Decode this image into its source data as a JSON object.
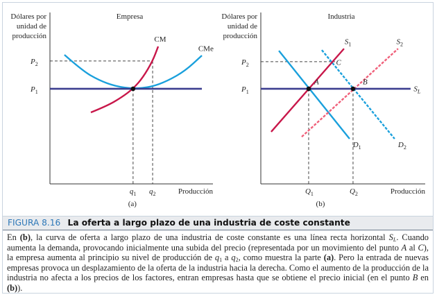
{
  "chart_data": [
    {
      "type": "line",
      "panel_label": "(a)",
      "title": "Empresa",
      "ylabel": "Dólares por unidad de producción",
      "xlabel": "Producción",
      "xlim": [
        0,
        100
      ],
      "ylim": [
        0,
        100
      ],
      "grid": false,
      "y_ticks": [
        {
          "label": "P",
          "sub": "2",
          "value": 71.7
        },
        {
          "label": "P",
          "sub": "1",
          "value": 55.5
        }
      ],
      "x_ticks": [
        {
          "label": "q",
          "sub": "1",
          "value": 51
        },
        {
          "label": "q",
          "sub": "2",
          "value": 63
        }
      ],
      "series": [
        {
          "name": "CMe",
          "color": "#1aa0dc",
          "style": "solid",
          "points": [
            [
              8.9,
              75.3
            ],
            [
              20,
              66
            ],
            [
              30,
              60.5
            ],
            [
              40,
              57
            ],
            [
              51,
              55.5
            ],
            [
              62,
              56.5
            ],
            [
              72,
              60
            ],
            [
              83,
              66
            ],
            [
              93.2,
              74.9
            ]
          ]
        },
        {
          "name": "CM",
          "color": "#c8174a",
          "style": "solid",
          "points": [
            [
              25.1,
              41.7
            ],
            [
              35,
              45.5
            ],
            [
              44,
              50.5
            ],
            [
              51,
              55.5
            ],
            [
              57,
              62
            ],
            [
              63,
              71.7
            ],
            [
              66.4,
              80.2
            ]
          ]
        },
        {
          "name": "P1",
          "color": "#3b3d8f",
          "style": "solid",
          "points": [
            [
              0,
              55.5
            ],
            [
              93.2,
              55.5
            ]
          ]
        }
      ],
      "guides": [
        [
          [
            0,
            71.7
          ],
          [
            63,
            71.7
          ]
        ],
        [
          [
            63,
            71.7
          ],
          [
            63,
            0
          ]
        ],
        [
          [
            51,
            55.5
          ],
          [
            51,
            0
          ]
        ]
      ],
      "points": [
        {
          "name": "",
          "x": 51,
          "y": 55.5
        }
      ],
      "labels": [
        {
          "text": "CM",
          "x": 64,
          "y": 83
        },
        {
          "text": "CMe",
          "x": 91,
          "y": 77.5
        }
      ]
    },
    {
      "type": "line",
      "panel_label": "(b)",
      "title": "Industria",
      "ylabel": "Dólares por unidad de producción",
      "xlabel": "Producción",
      "xlim": [
        0,
        100
      ],
      "ylim": [
        0,
        100
      ],
      "grid": false,
      "y_ticks": [
        {
          "label": "P",
          "sub": "2",
          "value": 71.3
        },
        {
          "label": "P",
          "sub": "1",
          "value": 55.5
        }
      ],
      "x_ticks": [
        {
          "label": "Q",
          "sub": "1",
          "value": 29.1
        },
        {
          "label": "Q",
          "sub": "2",
          "value": 56.1
        }
      ],
      "series": [
        {
          "name": "D1",
          "color": "#1aa0dc",
          "style": "solid",
          "points": [
            [
              11,
              77.7
            ],
            [
              54,
              26.3
            ]
          ]
        },
        {
          "name": "D2",
          "color": "#1aa0dc",
          "style": "dashed",
          "points": [
            [
              37.1,
              78.1
            ],
            [
              81.4,
              26.3
            ]
          ]
        },
        {
          "name": "S1",
          "color": "#c8174a",
          "style": "solid",
          "points": [
            [
              6.3,
              30.4
            ],
            [
              50.6,
              78.9
            ]
          ]
        },
        {
          "name": "S2",
          "color": "#f0607a",
          "style": "dashed",
          "points": [
            [
              24.9,
              27.5
            ],
            [
              83.5,
              78.9
            ]
          ]
        },
        {
          "name": "SL",
          "color": "#3b3d8f",
          "style": "solid",
          "points": [
            [
              0,
              55.5
            ],
            [
              91.1,
              55.5
            ]
          ]
        }
      ],
      "guides": [
        [
          [
            0,
            71.3
          ],
          [
            45.1,
            71.3
          ]
        ],
        [
          [
            29.1,
            55.5
          ],
          [
            29.1,
            0
          ]
        ],
        [
          [
            56.1,
            55.5
          ],
          [
            56.1,
            0
          ]
        ]
      ],
      "points": [
        {
          "name": "A",
          "x": 29.1,
          "y": 55.5
        },
        {
          "name": "B",
          "x": 56.1,
          "y": 55.5
        }
      ],
      "labels": [
        {
          "text": "S",
          "sub": "1",
          "x": 51,
          "y": 81.5
        },
        {
          "text": "S",
          "sub": "2",
          "x": 82.5,
          "y": 81.5
        },
        {
          "text": "C",
          "x": 45.8,
          "y": 69.5
        },
        {
          "text": "A",
          "x": 32.5,
          "y": 58
        },
        {
          "text": "B",
          "x": 62,
          "y": 58
        },
        {
          "text": "S",
          "sub": "L",
          "x": 93,
          "y": 54
        },
        {
          "text": "D",
          "sub": "1",
          "x": 56,
          "y": 21.5
        },
        {
          "text": "D",
          "sub": "2",
          "x": 83.5,
          "y": 21.5
        }
      ]
    }
  ],
  "caption": {
    "figure_number": "FIGURA 8.16",
    "title": "La oferta a largo plazo de una industria de coste constante",
    "body": [
      {
        "t": "En "
      },
      {
        "t": "(b)",
        "b": true
      },
      {
        "t": ", la curva de oferta a largo plazo de una industria de coste constante es una línea recta horizontal "
      },
      {
        "t": "S",
        "i": true
      },
      {
        "t": "L",
        "sub": true,
        "i": true
      },
      {
        "t": ". Cuando aumenta la demanda, provocando inicialmente una subida del precio (representada por un movimiento del punto "
      },
      {
        "t": "A",
        "i": true
      },
      {
        "t": " al "
      },
      {
        "t": "C",
        "i": true
      },
      {
        "t": "), la empresa aumenta al principio su nivel de producción de "
      },
      {
        "t": "q",
        "i": true
      },
      {
        "t": "1",
        "sub": true
      },
      {
        "t": " a "
      },
      {
        "t": "q",
        "i": true
      },
      {
        "t": "2",
        "sub": true
      },
      {
        "t": ", como muestra la parte "
      },
      {
        "t": "(a)",
        "b": true
      },
      {
        "t": ". Pero la entrada de nuevas empresas provoca un desplazamiento de la oferta de la industria hacia la derecha. Como el aumento de la producción de la industria no afecta a los precios de los factores, entran empresas hasta que se obtiene el precio inicial (en el punto "
      },
      {
        "t": "B",
        "i": true
      },
      {
        "t": " en "
      },
      {
        "t": "(b)",
        "b": true
      },
      {
        "t": ")."
      }
    ]
  }
}
